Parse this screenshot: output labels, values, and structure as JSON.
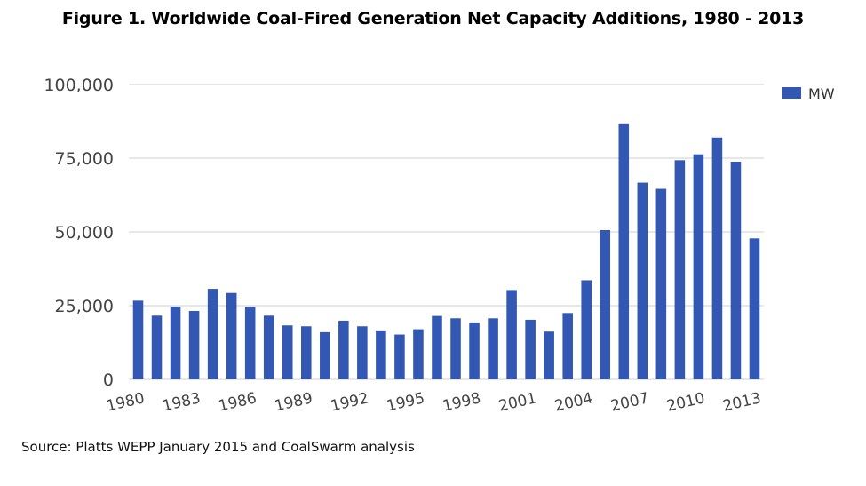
{
  "title": "Figure 1. Worldwide Coal-Fired Generation Net Capacity Additions, 1980 - 2013",
  "source": "Source: Platts WEPP January 2015 and CoalSwarm analysis",
  "chart_data": {
    "type": "bar",
    "categories": [
      "1980",
      "1981",
      "1982",
      "1983",
      "1984",
      "1985",
      "1986",
      "1987",
      "1988",
      "1989",
      "1990",
      "1991",
      "1992",
      "1993",
      "1994",
      "1995",
      "1996",
      "1997",
      "1998",
      "1999",
      "2000",
      "2001",
      "2002",
      "2003",
      "2004",
      "2005",
      "2006",
      "2007",
      "2008",
      "2009",
      "2010",
      "2011",
      "2012",
      "2013"
    ],
    "series": [
      {
        "name": "MW",
        "color": "#3358b4",
        "values": [
          26700,
          21600,
          24700,
          23200,
          30700,
          29300,
          24600,
          21600,
          18300,
          18000,
          16000,
          19900,
          18000,
          16600,
          15200,
          17000,
          21500,
          20700,
          19300,
          20700,
          30300,
          20200,
          16200,
          22500,
          33600,
          50600,
          86500,
          66700,
          64600,
          74300,
          76300,
          82000,
          73800,
          47800
        ]
      }
    ],
    "x_tick_labels": [
      "1980",
      "1983",
      "1986",
      "1989",
      "1992",
      "1995",
      "1998",
      "2001",
      "2004",
      "2007",
      "2010",
      "2013"
    ],
    "y_ticks": [
      {
        "value": 0,
        "label": "0"
      },
      {
        "value": 25000,
        "label": "25,000"
      },
      {
        "value": 50000,
        "label": "50,000"
      },
      {
        "value": 75000,
        "label": "75,000"
      },
      {
        "value": 100000,
        "label": "100,000"
      }
    ],
    "ylim": [
      0,
      100000
    ],
    "grid": true,
    "legend_position": "top-right",
    "xlabel": "",
    "ylabel": ""
  }
}
